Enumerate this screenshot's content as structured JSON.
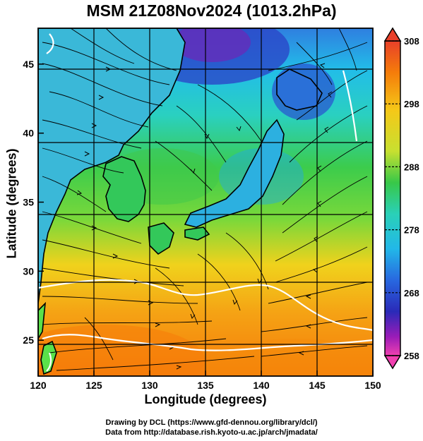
{
  "title": "MSM 21Z08Nov2024 (1013.2hPa)",
  "map": {
    "lon_range": [
      120,
      150
    ],
    "lat_range": [
      22.4,
      47.6
    ],
    "x_ticks": [
      "120",
      "125",
      "130",
      "135",
      "140",
      "145",
      "150"
    ],
    "y_ticks": [
      "25",
      "30",
      "35",
      "40",
      "45"
    ],
    "x_tick_values": [
      120,
      125,
      130,
      135,
      140,
      145,
      150
    ],
    "y_tick_values": [
      25,
      30,
      35,
      40,
      45
    ],
    "xlabel": "Longitude (degrees)",
    "ylabel": "Latitude  (degrees)",
    "grid": true,
    "field_colors": {
      "cold": "#3a5cd8",
      "cool": "#27c6e8",
      "mid": "#37c94a",
      "warm": "#f0c020",
      "hot": "#f57a0a"
    }
  },
  "colorbar": {
    "min": 258,
    "max": 308,
    "ticks": [
      "308",
      "298",
      "288",
      "278",
      "268",
      "258"
    ],
    "tick_values": [
      308,
      298,
      288,
      278,
      268,
      258
    ]
  },
  "credits": {
    "line1": "Drawing by DCL (https://www.gfd-dennou.org/library/dcl/)",
    "line2": "Data from http://database.rish.kyoto-u.ac.jp/arch/jmadata/"
  }
}
